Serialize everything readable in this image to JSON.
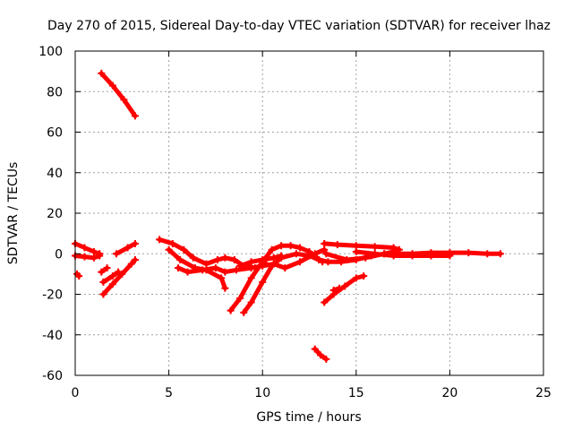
{
  "chart_data": {
    "type": "scatter",
    "title": "Day 270 of 2015, Sidereal Day-to-day VTEC variation (SDTVAR) for receiver lhaz",
    "xlabel": "GPS time / hours",
    "ylabel": "SDTVAR / TECUs",
    "xlim": [
      0,
      25
    ],
    "ylim": [
      -60,
      100
    ],
    "xticks": [
      0,
      5,
      10,
      15,
      20,
      25
    ],
    "yticks": [
      -60,
      -40,
      -20,
      0,
      20,
      40,
      60,
      80,
      100
    ],
    "grid": true,
    "legend": "none",
    "color": "#ff0000",
    "series": [
      {
        "name": "track-1",
        "points": [
          [
            1.4,
            89
          ],
          [
            2.0,
            83
          ],
          [
            2.6,
            76
          ],
          [
            3.2,
            68
          ]
        ]
      },
      {
        "name": "track-2",
        "points": [
          [
            0.0,
            5
          ],
          [
            0.5,
            3
          ],
          [
            1.0,
            1
          ],
          [
            1.3,
            0
          ]
        ]
      },
      {
        "name": "track-3",
        "points": [
          [
            0.0,
            -1
          ],
          [
            0.5,
            -1.5
          ],
          [
            1.0,
            -2
          ],
          [
            1.3,
            -1
          ]
        ]
      },
      {
        "name": "track-4",
        "points": [
          [
            0.1,
            -10
          ],
          [
            0.2,
            -11
          ]
        ]
      },
      {
        "name": "track-5",
        "points": [
          [
            1.5,
            -20
          ],
          [
            2.0,
            -15
          ],
          [
            2.5,
            -10
          ],
          [
            3.0,
            -5
          ],
          [
            3.2,
            -3
          ]
        ]
      },
      {
        "name": "track-6",
        "points": [
          [
            1.5,
            -14
          ],
          [
            2.0,
            -11
          ],
          [
            2.3,
            -9
          ]
        ]
      },
      {
        "name": "track-7",
        "points": [
          [
            1.4,
            -9
          ],
          [
            1.7,
            -7
          ]
        ]
      },
      {
        "name": "track-8",
        "points": [
          [
            2.2,
            0
          ],
          [
            2.8,
            3
          ],
          [
            3.2,
            5
          ]
        ]
      },
      {
        "name": "track-9",
        "points": [
          [
            4.5,
            7
          ],
          [
            5.2,
            5
          ],
          [
            5.8,
            2
          ],
          [
            6.3,
            -2
          ],
          [
            7.0,
            -5
          ],
          [
            7.6,
            -3
          ],
          [
            8.0,
            -2
          ],
          [
            8.5,
            -3
          ],
          [
            9.0,
            -6
          ],
          [
            9.6,
            -7
          ],
          [
            10.2,
            -5
          ]
        ]
      },
      {
        "name": "track-10",
        "points": [
          [
            5.5,
            -7
          ],
          [
            6.0,
            -9
          ],
          [
            6.8,
            -8
          ],
          [
            7.5,
            -7
          ],
          [
            8.0,
            -9
          ],
          [
            8.6,
            -8
          ],
          [
            9.4,
            -7
          ],
          [
            10.0,
            -6
          ],
          [
            10.6,
            -5
          ],
          [
            11.2,
            -7
          ],
          [
            12.0,
            -4
          ],
          [
            12.8,
            0
          ],
          [
            13.3,
            2
          ]
        ]
      },
      {
        "name": "track-11",
        "points": [
          [
            5.0,
            2
          ],
          [
            5.6,
            -3
          ],
          [
            6.4,
            -7
          ],
          [
            7.0,
            -8
          ],
          [
            7.8,
            -12
          ],
          [
            8.0,
            -17
          ]
        ]
      },
      {
        "name": "track-12",
        "points": [
          [
            8.3,
            -28
          ],
          [
            8.8,
            -22
          ],
          [
            9.4,
            -12
          ],
          [
            10.0,
            -4
          ],
          [
            10.5,
            2
          ],
          [
            11.0,
            4
          ],
          [
            11.5,
            4
          ],
          [
            12.0,
            3
          ],
          [
            12.5,
            1
          ],
          [
            12.9,
            -2
          ],
          [
            13.2,
            -4
          ]
        ]
      },
      {
        "name": "track-13",
        "points": [
          [
            9.0,
            -29
          ],
          [
            9.4,
            -24
          ],
          [
            10.0,
            -14
          ],
          [
            10.5,
            -6
          ],
          [
            11.0,
            -2
          ],
          [
            11.8,
            0
          ],
          [
            12.5,
            -1
          ],
          [
            13.0,
            -3
          ],
          [
            13.5,
            -4
          ],
          [
            14.2,
            -4
          ],
          [
            15.0,
            -3
          ],
          [
            15.8,
            -1
          ],
          [
            16.5,
            0
          ],
          [
            17.0,
            0
          ]
        ]
      },
      {
        "name": "track-14",
        "points": [
          [
            8.8,
            -6
          ],
          [
            9.4,
            -4
          ],
          [
            10.0,
            -3
          ],
          [
            10.6,
            -2
          ],
          [
            11.0,
            -1
          ]
        ]
      },
      {
        "name": "track-15",
        "points": [
          [
            13.3,
            -24
          ],
          [
            13.8,
            -20
          ],
          [
            14.4,
            -16
          ],
          [
            15.0,
            -12
          ],
          [
            15.4,
            -11
          ]
        ]
      },
      {
        "name": "track-16",
        "points": [
          [
            13.8,
            -18
          ],
          [
            14.1,
            -17
          ]
        ]
      },
      {
        "name": "track-17",
        "points": [
          [
            12.8,
            -47
          ],
          [
            13.1,
            -50
          ],
          [
            13.4,
            -52
          ]
        ]
      },
      {
        "name": "track-18",
        "points": [
          [
            13.3,
            5
          ],
          [
            14.0,
            4.5
          ],
          [
            15.0,
            4
          ],
          [
            16.0,
            3.5
          ],
          [
            17.0,
            3
          ],
          [
            17.3,
            2
          ]
        ]
      },
      {
        "name": "track-19",
        "points": [
          [
            13.4,
            0
          ],
          [
            14.5,
            -3
          ],
          [
            15.5,
            -2
          ],
          [
            16.5,
            0
          ],
          [
            17.0,
            1
          ]
        ]
      },
      {
        "name": "track-20",
        "points": [
          [
            15.0,
            1
          ],
          [
            16.0,
            0
          ],
          [
            17.0,
            -1
          ],
          [
            18.0,
            -1
          ],
          [
            19.0,
            -1
          ],
          [
            20.0,
            -1
          ]
        ]
      },
      {
        "name": "track-21",
        "points": [
          [
            17.0,
            0
          ],
          [
            18.0,
            0
          ],
          [
            19.0,
            0.5
          ],
          [
            20.0,
            0.5
          ],
          [
            21.0,
            0.5
          ],
          [
            22.0,
            0
          ],
          [
            22.7,
            0
          ]
        ]
      }
    ]
  }
}
